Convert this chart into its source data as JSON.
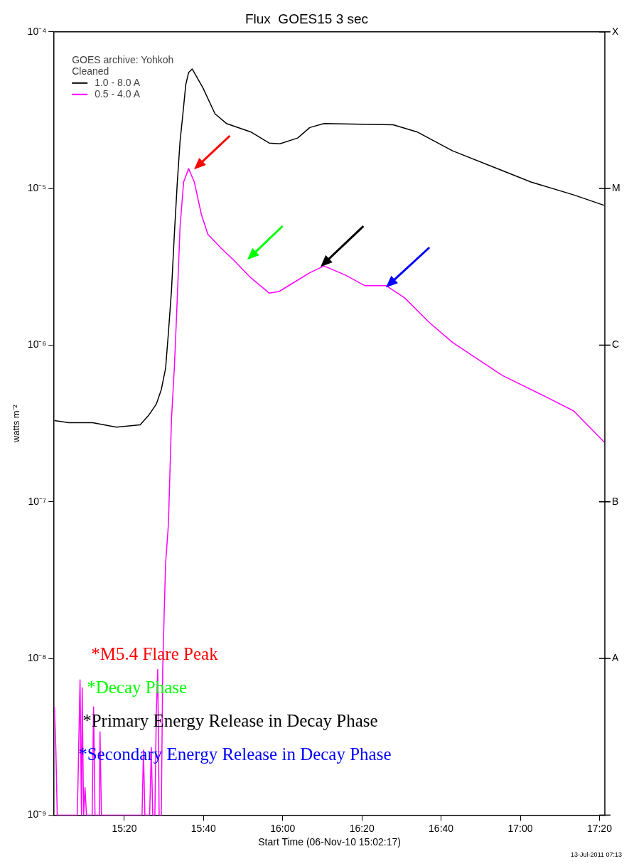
{
  "chart_data": {
    "type": "line",
    "title": "Flux  GOES15 3 sec",
    "xlabel": "Start Time (06-Nov-10 15:02:17)",
    "ylabel": "watts m⁻²",
    "legend_title": "GOES archive: Yohkoh\nCleaned",
    "legend": "top left",
    "marker": "none",
    "log": true,
    "xlim": [
      15.038,
      17.356
    ],
    "xticks": [
      {
        "value": 15.3333,
        "label": "15:20"
      },
      {
        "value": 15.6667,
        "label": "15:40"
      },
      {
        "value": 16,
        "label": "16:00"
      },
      {
        "value": 16.3333,
        "label": "16:20"
      },
      {
        "value": 16.6667,
        "label": "16:40"
      },
      {
        "value": 17,
        "label": "17:00"
      },
      {
        "value": 17.3333,
        "label": "17:20"
      }
    ],
    "ylim": [
      1e-09,
      0.0001
    ],
    "yticks": [
      {
        "value": 1e-09,
        "label": "10⁻⁹"
      },
      {
        "value": 1e-08,
        "label": "10⁻⁸"
      },
      {
        "value": 1e-07,
        "label": "10⁻⁷"
      },
      {
        "value": 1e-06,
        "label": "10⁻⁶"
      },
      {
        "value": 1e-05,
        "label": "10⁻⁵"
      },
      {
        "value": 0.0001,
        "label": "10⁻⁴"
      }
    ],
    "series": [
      {
        "name": "1.0 - 8.0 A",
        "color": "#000000",
        "x": [
          15.039,
          15.1,
          15.2,
          15.3,
          15.4,
          15.438,
          15.468,
          15.489,
          15.507,
          15.519,
          15.532,
          15.544,
          15.556,
          15.568,
          15.58,
          15.592,
          15.604,
          15.619,
          15.664,
          15.715,
          15.763,
          15.865,
          15.943,
          15.988,
          16.063,
          16.114,
          16.174,
          16.465,
          16.565,
          16.715,
          16.925,
          17.045,
          17.225,
          17.354
        ],
        "values": [
          3.3e-07,
          3.2e-07,
          3.2e-07,
          3e-07,
          3.1e-07,
          3.6e-07,
          4.2e-07,
          5.2e-07,
          7.1e-07,
          1.2e-06,
          2.25e-06,
          5.1e-06,
          1.07e-05,
          2e-05,
          3e-05,
          4.6e-05,
          5.5e-05,
          5.8e-05,
          4.4e-05,
          3e-05,
          2.6e-05,
          2.3e-05,
          1.95e-05,
          1.93e-05,
          2.1e-05,
          2.45e-05,
          2.6e-05,
          2.55e-05,
          2.3e-05,
          1.74e-05,
          1.3e-05,
          1.1e-05,
          9.1e-06,
          7.8e-06
        ]
      },
      {
        "name": "0.5 - 4.0 A",
        "color": "#ff00ff",
        "x": [
          15.039,
          15.045,
          15.051,
          15.135,
          15.138,
          15.147,
          15.153,
          15.156,
          15.162,
          15.168,
          15.174,
          15.198,
          15.204,
          15.21,
          15.228,
          15.231,
          15.237,
          15.408,
          15.414,
          15.42,
          15.44,
          15.447,
          15.453,
          15.462,
          15.468,
          15.474,
          15.48,
          15.489,
          15.495,
          15.501,
          15.507,
          15.519,
          15.532,
          15.544,
          15.553,
          15.568,
          15.583,
          15.604,
          15.628,
          15.658,
          15.685,
          15.745,
          15.793,
          15.865,
          15.943,
          15.985,
          16.063,
          16.114,
          16.174,
          16.264,
          16.345,
          16.435,
          16.514,
          16.616,
          16.715,
          16.925,
          17.105,
          17.225,
          17.354
        ],
        "values": [
          4.9e-09,
          2.7e-09,
          1e-09,
          1e-09,
          1.5e-09,
          7.3e-09,
          1e-09,
          6.5e-09,
          1e-09,
          1.5e-09,
          1e-09,
          1e-09,
          4.9e-09,
          1e-09,
          1e-09,
          3.4e-09,
          1e-09,
          1e-09,
          2.6e-09,
          1e-09,
          1e-09,
          2.7e-09,
          1e-09,
          1e-09,
          4.5e-09,
          8.5e-09,
          1e-09,
          1e-09,
          8.5e-09,
          1.9e-08,
          4e-08,
          7.2e-08,
          3.4e-07,
          7.2e-07,
          1.5e-06,
          5.7e-06,
          1.1e-05,
          1.34e-05,
          1.1e-05,
          6.8e-06,
          5.1e-06,
          4.1e-06,
          3.5e-06,
          2.7e-06,
          2.15e-06,
          2.2e-06,
          2.6e-06,
          2.9e-06,
          3.2e-06,
          2.8e-06,
          2.4e-06,
          2.4e-06,
          2e-06,
          1.4e-06,
          1.04e-06,
          6.4e-07,
          4.7e-07,
          3.8e-07,
          2.4e-07
        ]
      }
    ],
    "annotations": [
      "*M5.4 Flare Peak",
      "*Decay Phase",
      "*Primary Energy Release in Decay Phase",
      "*Secondary Energy Release in Decay Phase",
      "A",
      "B",
      "C",
      "M",
      "X",
      "13-Jul-2011 07:13"
    ]
  }
}
